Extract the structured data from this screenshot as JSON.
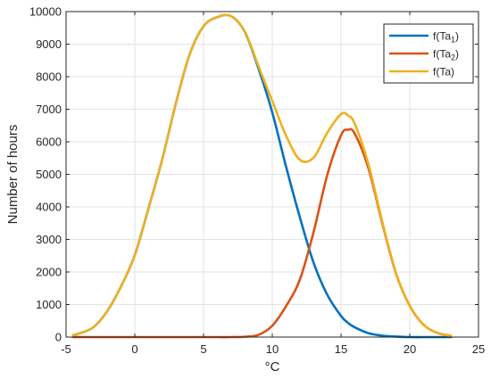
{
  "chart_data": {
    "type": "line",
    "xlabel": "°C",
    "ylabel": "Number of hours",
    "xlim": [
      -5,
      25
    ],
    "ylim": [
      0,
      10000
    ],
    "x_ticks": [
      -5,
      0,
      5,
      10,
      15,
      20,
      25
    ],
    "y_ticks": [
      0,
      1000,
      2000,
      3000,
      4000,
      5000,
      6000,
      7000,
      8000,
      9000,
      10000
    ],
    "x_tick_labels": [
      "-5",
      "0",
      "5",
      "10",
      "15",
      "20",
      "25"
    ],
    "y_tick_labels": [
      "0",
      "1000",
      "2000",
      "3000",
      "4000",
      "5000",
      "6000",
      "7000",
      "8000",
      "9000",
      "10000"
    ],
    "grid": true,
    "legend_position": "top-right",
    "x": [
      -4.5,
      -4,
      -3,
      -2,
      -1,
      0,
      1,
      2,
      3,
      4,
      5,
      6,
      7,
      8,
      9,
      10,
      11,
      12,
      13,
      14,
      15,
      15.5,
      16,
      17,
      18,
      19,
      20,
      21,
      22,
      23
    ],
    "series": [
      {
        "name_base": "f(Ta",
        "name_sub": "1",
        "name_tail": ")",
        "color": "#0072BD",
        "values": [
          56,
          117,
          306,
          800,
          1560,
          2520,
          3960,
          5470,
          7200,
          8700,
          9550,
          9830,
          9860,
          9380,
          8250,
          6900,
          5240,
          3690,
          2290,
          1300,
          650,
          440,
          300,
          120,
          45,
          15,
          0,
          0,
          0,
          0
        ]
      },
      {
        "name_base": "f(Ta",
        "name_sub": "2",
        "name_tail": ")",
        "color": "#D95319",
        "values": [
          0,
          0,
          0,
          0,
          0,
          0,
          0,
          0,
          0,
          0,
          0,
          0,
          0,
          10,
          70,
          350,
          950,
          1760,
          3220,
          4980,
          6200,
          6370,
          6250,
          5180,
          3500,
          1950,
          960,
          380,
          130,
          40
        ]
      },
      {
        "name_base": "f(Ta)",
        "name_sub": "",
        "name_tail": "",
        "color": "#EDB120",
        "values": [
          56,
          117,
          306,
          800,
          1560,
          2520,
          3960,
          5470,
          7200,
          8700,
          9550,
          9830,
          9860,
          9390,
          8320,
          7250,
          6190,
          5450,
          5510,
          6280,
          6850,
          6810,
          6550,
          5300,
          3545,
          1965,
          960,
          380,
          130,
          40
        ]
      }
    ]
  }
}
